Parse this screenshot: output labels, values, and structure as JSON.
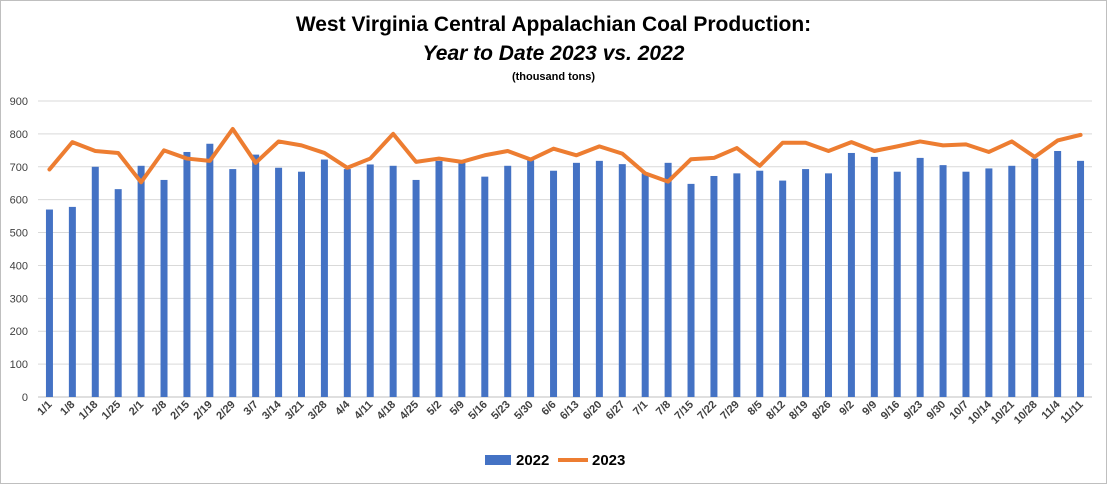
{
  "chart_data": {
    "type": "bar+line",
    "title": "West Virginia Central Appalachian Coal Production:",
    "subtitle": "Year to Date 2023 vs. 2022",
    "unit_note": "(thousand tons)",
    "xlabel": "",
    "ylabel": "",
    "ylim": [
      0,
      900
    ],
    "yticks": [
      0,
      100,
      200,
      300,
      400,
      500,
      600,
      700,
      800,
      900
    ],
    "grid": true,
    "legend_position": "bottom",
    "categories": [
      "1/1",
      "1/8",
      "1/18",
      "1/25",
      "2/1",
      "2/8",
      "2/15",
      "2/19",
      "2/29",
      "3/7",
      "3/14",
      "3/21",
      "3/28",
      "4/4",
      "4/11",
      "4/18",
      "4/25",
      "5/2",
      "5/9",
      "5/16",
      "5/23",
      "5/30",
      "6/6",
      "6/13",
      "6/20",
      "6/27",
      "7/1",
      "7/8",
      "7/15",
      "7/22",
      "7/29",
      "8/5",
      "8/12",
      "8/19",
      "8/26",
      "9/2",
      "9/9",
      "9/16",
      "9/23",
      "9/30",
      "10/7",
      "10/14",
      "10/21",
      "10/28",
      "11/4",
      "11/11"
    ],
    "series": [
      {
        "name": "2022",
        "type": "bar",
        "color": "#4472C4",
        "values": [
          570,
          578,
          700,
          632,
          703,
          660,
          745,
          770,
          693,
          737,
          697,
          685,
          722,
          693,
          707,
          703,
          660,
          718,
          712,
          670,
          703,
          720,
          688,
          712,
          718,
          708,
          680,
          712,
          648,
          672,
          680,
          688,
          658,
          693,
          680,
          742,
          730,
          685,
          727,
          705,
          685,
          695,
          703,
          725,
          748,
          718
        ]
      },
      {
        "name": "2023",
        "type": "line",
        "color": "#ED7D31",
        "values": [
          692,
          775,
          748,
          742,
          653,
          750,
          725,
          718,
          815,
          712,
          777,
          765,
          742,
          697,
          725,
          800,
          715,
          725,
          715,
          735,
          748,
          722,
          755,
          735,
          762,
          740,
          680,
          655,
          723,
          727,
          757,
          703,
          773,
          773,
          748,
          775,
          748,
          762,
          777,
          765,
          768,
          745,
          777,
          730,
          780,
          797
        ]
      }
    ]
  }
}
